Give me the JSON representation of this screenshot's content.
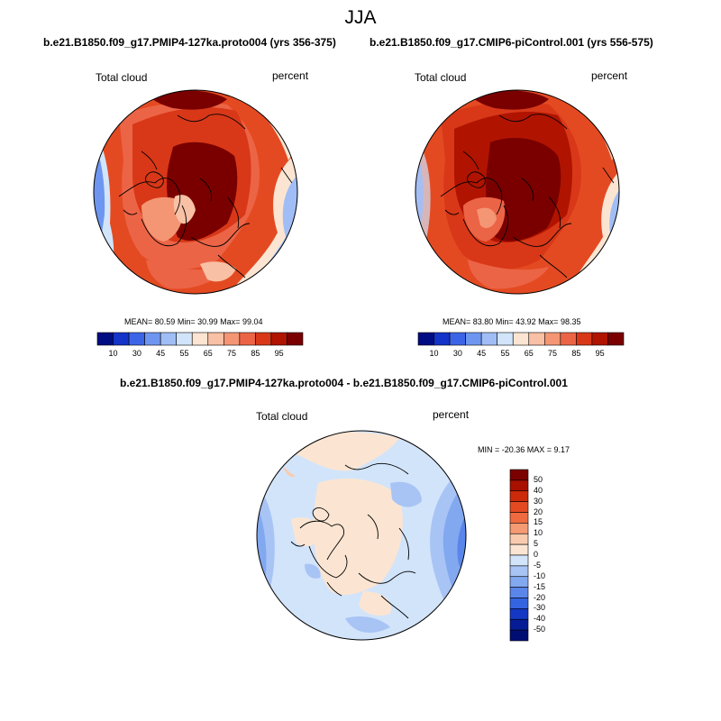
{
  "page": {
    "title": "JJA"
  },
  "panels": [
    {
      "subtitle": "b.e21.B1850.f09_g17.PMIP4-127ka.proto004 (yrs 356-375)",
      "variable": "Total cloud",
      "units": "percent",
      "stats": {
        "mean_label": "MEAN=",
        "mean": "80.59",
        "min_label": "Min=",
        "min": "30.99",
        "max_label": "Max=",
        "max": "99.04"
      }
    },
    {
      "subtitle": "b.e21.B1850.f09_g17.CMIP6-piControl.001 (yrs 556-575)",
      "variable": "Total cloud",
      "units": "percent",
      "stats": {
        "mean_label": "MEAN=",
        "mean": "83.80",
        "min_label": "Min=",
        "min": "43.92",
        "max_label": "Max=",
        "max": "98.35"
      }
    },
    {
      "subtitle": "b.e21.B1850.f09_g17.PMIP4-127ka.proto004 - b.e21.B1850.f09_g17.CMIP6-piControl.001",
      "variable": "Total cloud",
      "units": "percent",
      "minmax_text": "MIN = -20.36 MAX =   9.17"
    }
  ],
  "colorbar_abs": {
    "ticks": [
      "10",
      "30",
      "45",
      "55",
      "65",
      "75",
      "85",
      "95"
    ],
    "colors": [
      "#000d82",
      "#1433c8",
      "#3c64e6",
      "#6e96f0",
      "#a0bef5",
      "#d2e4fa",
      "#fbe5d2",
      "#f8c0a4",
      "#f49674",
      "#ec6446",
      "#d83818",
      "#b01400",
      "#7a0000"
    ]
  },
  "colorbar_diff": {
    "ticks": [
      "50",
      "40",
      "30",
      "20",
      "15",
      "10",
      "5",
      "0",
      "-5",
      "-10",
      "-15",
      "-20",
      "-30",
      "-40",
      "-50"
    ],
    "colors": [
      "#7a0000",
      "#a81000",
      "#cc2a0a",
      "#e44a22",
      "#f06a40",
      "#f59a72",
      "#f9cbae",
      "#fbe5d2",
      "#d2e4fa",
      "#a8c4f5",
      "#82a8f0",
      "#5a86ea",
      "#3464e0",
      "#1438c4",
      "#061c96",
      "#000d72"
    ]
  },
  "chart_data": {
    "type": "heatmap",
    "title": "JJA",
    "projection": "north polar stereographic",
    "variable": "Total cloud",
    "units": "percent",
    "panels": [
      {
        "name": "PMIP4-127ka.proto004 (yrs 356-375)",
        "mean": 80.59,
        "min": 30.99,
        "max": 99.04,
        "levels": [
          10,
          30,
          45,
          55,
          65,
          75,
          85,
          95
        ]
      },
      {
        "name": "CMIP6-piControl.001 (yrs 556-575)",
        "mean": 83.8,
        "min": 43.92,
        "max": 98.35,
        "levels": [
          10,
          30,
          45,
          55,
          65,
          75,
          85,
          95
        ]
      },
      {
        "name": "PMIP4-127ka - CMIP6-piControl difference",
        "min": -20.36,
        "max": 9.17,
        "levels": [
          -50,
          -40,
          -30,
          -20,
          -15,
          -10,
          -5,
          0,
          5,
          10,
          15,
          20,
          30,
          40,
          50
        ]
      }
    ]
  }
}
